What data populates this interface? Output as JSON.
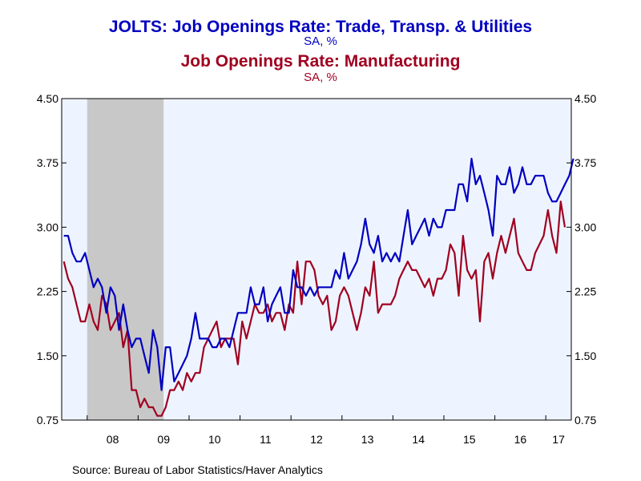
{
  "chart_data": {
    "type": "line",
    "title1": "JOLTS: Job Openings Rate: Trade, Transp. & Utilities",
    "subtitle1": "SA, %",
    "title2": "Job Openings Rate: Manufacturing",
    "subtitle2": "SA, %",
    "source": "Source:  Bureau of Labor Statistics/Haver Analytics",
    "ylim": [
      0.75,
      4.5
    ],
    "yticks": [
      "4.50",
      "3.75",
      "3.00",
      "2.25",
      "1.50",
      "0.75"
    ],
    "ytick_values": [
      4.5,
      3.75,
      3.0,
      2.25,
      1.5,
      0.75
    ],
    "xtick_labels": [
      "08",
      "09",
      "10",
      "11",
      "12",
      "13",
      "14",
      "15",
      "16",
      "17"
    ],
    "x_start": "2007-07",
    "x_end": "2017-06",
    "recession": {
      "start": "2008-01",
      "end": "2009-06"
    },
    "colors": {
      "trade": "#0000c0",
      "manufacturing": "#a00020",
      "recession": "#c8c8c8",
      "plot_bg": "#eef4ff"
    },
    "series": [
      {
        "name": "JOLTS: Job Openings Rate: Trade, Transp. & Utilities",
        "values": [
          2.9,
          2.9,
          2.7,
          2.6,
          2.6,
          2.7,
          2.5,
          2.3,
          2.4,
          2.3,
          2.0,
          2.3,
          2.2,
          1.8,
          2.1,
          1.8,
          1.6,
          1.7,
          1.7,
          1.5,
          1.3,
          1.8,
          1.6,
          1.1,
          1.6,
          1.6,
          1.2,
          1.3,
          1.4,
          1.5,
          1.7,
          2.0,
          1.7,
          1.7,
          1.7,
          1.6,
          1.6,
          1.7,
          1.7,
          1.6,
          1.8,
          2.0,
          2.0,
          2.0,
          2.3,
          2.1,
          2.1,
          2.3,
          1.9,
          2.1,
          2.2,
          2.3,
          2.0,
          2.0,
          2.5,
          2.3,
          2.3,
          2.2,
          2.3,
          2.2,
          2.3,
          2.3,
          2.3,
          2.3,
          2.5,
          2.4,
          2.7,
          2.4,
          2.5,
          2.6,
          2.8,
          3.1,
          2.8,
          2.7,
          2.9,
          2.6,
          2.7,
          2.6,
          2.7,
          2.6,
          2.9,
          3.2,
          2.8,
          2.9,
          3.0,
          3.1,
          2.9,
          3.1,
          3.0,
          3.0,
          3.2,
          3.2,
          3.2,
          3.5,
          3.5,
          3.3,
          3.8,
          3.5,
          3.6,
          3.4,
          3.2,
          2.9,
          3.6,
          3.5,
          3.5,
          3.7,
          3.4,
          3.5,
          3.7,
          3.5,
          3.5,
          3.6,
          3.6,
          3.6,
          3.4,
          3.3,
          3.3,
          3.4,
          3.5,
          3.6,
          3.8
        ]
      },
      {
        "name": "Job Openings Rate: Manufacturing",
        "values": [
          2.6,
          2.4,
          2.3,
          2.1,
          1.9,
          1.9,
          2.1,
          1.9,
          1.8,
          2.2,
          2.1,
          1.8,
          1.9,
          2.0,
          1.6,
          1.8,
          1.1,
          1.1,
          0.9,
          1.0,
          0.9,
          0.9,
          0.8,
          0.8,
          0.9,
          1.1,
          1.1,
          1.2,
          1.1,
          1.3,
          1.2,
          1.3,
          1.3,
          1.6,
          1.7,
          1.8,
          1.9,
          1.6,
          1.7,
          1.7,
          1.7,
          1.4,
          1.9,
          1.7,
          1.9,
          2.1,
          2.0,
          2.0,
          2.1,
          1.9,
          2.0,
          2.0,
          1.8,
          2.1,
          2.0,
          2.6,
          2.1,
          2.6,
          2.6,
          2.5,
          2.2,
          2.1,
          2.2,
          1.8,
          1.9,
          2.2,
          2.3,
          2.2,
          2.0,
          1.8,
          2.0,
          2.3,
          2.2,
          2.6,
          2.0,
          2.1,
          2.1,
          2.1,
          2.2,
          2.4,
          2.5,
          2.6,
          2.5,
          2.5,
          2.4,
          2.3,
          2.4,
          2.2,
          2.4,
          2.4,
          2.5,
          2.8,
          2.7,
          2.2,
          2.9,
          2.5,
          2.4,
          2.5,
          1.9,
          2.6,
          2.7,
          2.4,
          2.7,
          2.9,
          2.7,
          2.9,
          3.1,
          2.7,
          2.6,
          2.5,
          2.5,
          2.7,
          2.8,
          2.9,
          3.2,
          2.9,
          2.7,
          3.3,
          3.0
        ]
      }
    ]
  }
}
